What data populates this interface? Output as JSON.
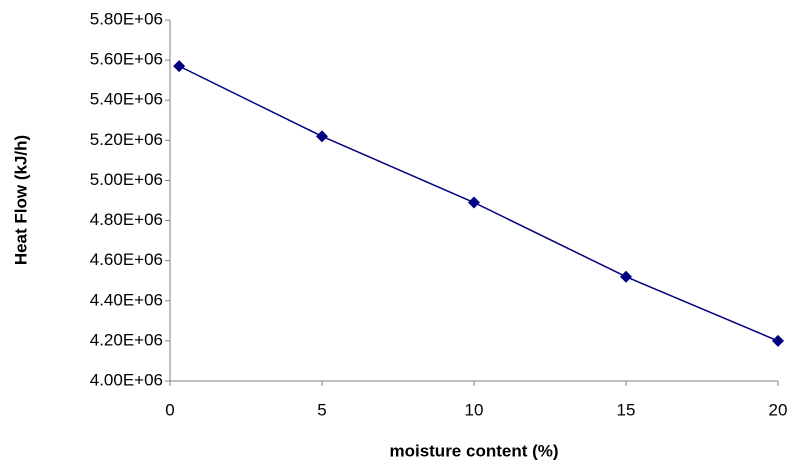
{
  "chart_data": {
    "type": "line",
    "x_label": "moisture content (%)",
    "y_label": "Heat Flow (kJ/h)",
    "x": [
      0.3,
      5,
      10,
      15,
      20
    ],
    "series": [
      {
        "name": "Heat Flow",
        "color": "#000080",
        "values": [
          5570000,
          5220000,
          4890000,
          4520000,
          4200000
        ]
      }
    ],
    "xlim": [
      0,
      20
    ],
    "xticks": [
      0,
      5,
      10,
      15,
      20
    ],
    "ylim": [
      4000000,
      5800000
    ],
    "yticks": [
      {
        "value": 4000000,
        "label": "4.00E+06"
      },
      {
        "value": 4200000,
        "label": "4.20E+06"
      },
      {
        "value": 4400000,
        "label": "4.40E+06"
      },
      {
        "value": 4600000,
        "label": "4.60E+06"
      },
      {
        "value": 4800000,
        "label": "4.80E+06"
      },
      {
        "value": 5000000,
        "label": "5.00E+06"
      },
      {
        "value": 5200000,
        "label": "5.20E+06"
      },
      {
        "value": 5400000,
        "label": "5.40E+06"
      },
      {
        "value": 5600000,
        "label": "5.60E+06"
      },
      {
        "value": 5800000,
        "label": "5.80E+06"
      }
    ],
    "grid": false
  }
}
